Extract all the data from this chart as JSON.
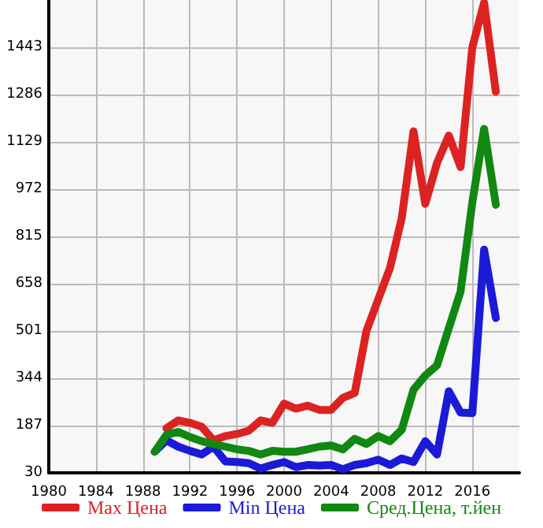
{
  "chart_data": {
    "type": "line",
    "x": [
      1989,
      1990,
      1991,
      1992,
      1993,
      1994,
      1995,
      1996,
      1997,
      1998,
      1999,
      2000,
      2001,
      2002,
      2003,
      2004,
      2005,
      2006,
      2007,
      2008,
      2009,
      2010,
      2011,
      2012,
      2013,
      2014,
      2015,
      2016,
      2017,
      2018
    ],
    "series": [
      {
        "name": "Max Цена",
        "color": "#dd2222",
        "values": [
          null,
          178,
          204,
          196,
          183,
          138,
          152,
          159,
          170,
          204,
          196,
          260,
          243,
          253,
          239,
          239,
          279,
          295,
          501,
          606,
          710,
          876,
          1164,
          923,
          1059,
          1150,
          1045,
          1443,
          1591,
          1295
        ]
      },
      {
        "name": "Min Цена",
        "color": "#1a1ad8",
        "values": [
          100,
          138,
          117,
          103,
          91,
          117,
          68,
          66,
          62,
          44,
          56,
          66,
          49,
          56,
          54,
          56,
          42,
          56,
          62,
          74,
          56,
          78,
          66,
          135,
          91,
          301,
          230,
          228,
          771,
          544
        ]
      },
      {
        "name": "Сред.Цена, т.йен",
        "color": "#118811",
        "values": [
          100,
          156,
          166,
          149,
          135,
          126,
          117,
          108,
          103,
          91,
          103,
          100,
          100,
          108,
          117,
          121,
          108,
          143,
          126,
          152,
          135,
          173,
          306,
          353,
          387,
          510,
          632,
          928,
          1172,
          920
        ]
      }
    ],
    "xlim": [
      1980,
      2020
    ],
    "xticks": [
      1980,
      1984,
      1988,
      1992,
      1996,
      2000,
      2004,
      2008,
      2012,
      2016
    ],
    "ylim": [
      30,
      1600
    ],
    "yticks": [
      30,
      187,
      344,
      501,
      658,
      815,
      972,
      1129,
      1286,
      1443
    ],
    "grid": true,
    "legend": "bottom",
    "marker": "none",
    "line_style": "solid"
  }
}
